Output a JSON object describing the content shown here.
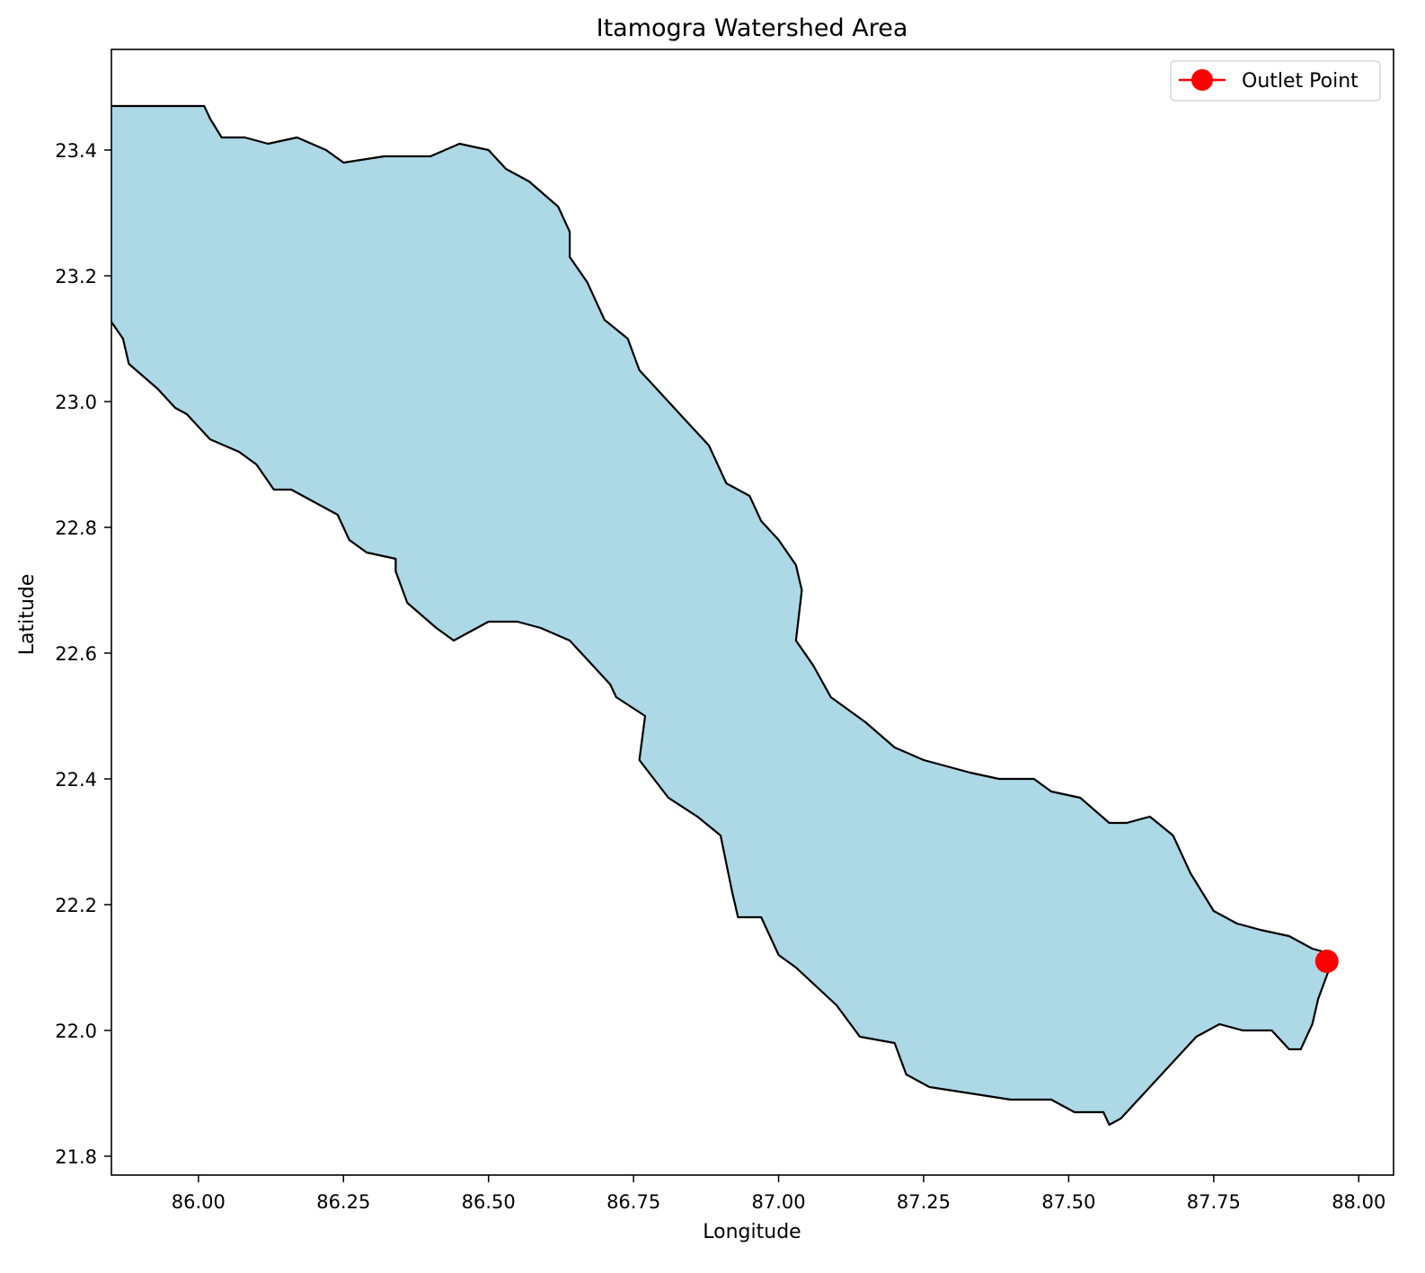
{
  "chart_data": {
    "type": "map",
    "title": "Itamogra Watershed Area",
    "xlabel": "Longitude",
    "ylabel": "Latitude",
    "xlim": [
      85.85,
      88.06
    ],
    "ylim": [
      21.77,
      23.56
    ],
    "xticks": [
      86.0,
      86.25,
      86.5,
      86.75,
      87.0,
      87.25,
      87.5,
      87.75,
      88.0
    ],
    "xtick_labels": [
      "86.00",
      "86.25",
      "86.50",
      "86.75",
      "87.00",
      "87.25",
      "87.50",
      "87.75",
      "88.00"
    ],
    "yticks": [
      21.8,
      22.0,
      22.2,
      22.4,
      22.6,
      22.8,
      23.0,
      23.2,
      23.4
    ],
    "ytick_labels": [
      "21.8",
      "22.0",
      "22.2",
      "22.4",
      "22.6",
      "22.8",
      "23.0",
      "23.2",
      "23.4"
    ],
    "grid": false,
    "legend": {
      "position": "top-right",
      "entries": [
        "Outlet Point"
      ]
    },
    "colors": {
      "watershed_fill": "#add8e6",
      "watershed_edge": "#000000",
      "outlet": "#ff0000"
    },
    "watershed_boundary": [
      [
        85.95,
        23.47
      ],
      [
        86.01,
        23.47
      ],
      [
        86.02,
        23.45
      ],
      [
        86.04,
        23.42
      ],
      [
        86.08,
        23.42
      ],
      [
        86.12,
        23.41
      ],
      [
        86.17,
        23.42
      ],
      [
        86.22,
        23.4
      ],
      [
        86.25,
        23.38
      ],
      [
        86.32,
        23.39
      ],
      [
        86.4,
        23.39
      ],
      [
        86.45,
        23.41
      ],
      [
        86.5,
        23.4
      ],
      [
        86.53,
        23.37
      ],
      [
        86.57,
        23.35
      ],
      [
        86.62,
        23.31
      ],
      [
        86.64,
        23.27
      ],
      [
        86.64,
        23.23
      ],
      [
        86.67,
        23.19
      ],
      [
        86.7,
        23.13
      ],
      [
        86.74,
        23.1
      ],
      [
        86.76,
        23.05
      ],
      [
        86.79,
        23.02
      ],
      [
        86.84,
        22.97
      ],
      [
        86.88,
        22.93
      ],
      [
        86.91,
        22.87
      ],
      [
        86.95,
        22.85
      ],
      [
        86.97,
        22.81
      ],
      [
        87.0,
        22.78
      ],
      [
        87.03,
        22.74
      ],
      [
        87.04,
        22.7
      ],
      [
        87.03,
        22.62
      ],
      [
        87.06,
        22.58
      ],
      [
        87.09,
        22.53
      ],
      [
        87.15,
        22.49
      ],
      [
        87.2,
        22.45
      ],
      [
        87.25,
        22.43
      ],
      [
        87.33,
        22.41
      ],
      [
        87.38,
        22.4
      ],
      [
        87.44,
        22.4
      ],
      [
        87.47,
        22.38
      ],
      [
        87.52,
        22.37
      ],
      [
        87.57,
        22.33
      ],
      [
        87.6,
        22.33
      ],
      [
        87.64,
        22.34
      ],
      [
        87.68,
        22.31
      ],
      [
        87.71,
        22.25
      ],
      [
        87.75,
        22.19
      ],
      [
        87.79,
        22.17
      ],
      [
        87.83,
        22.16
      ],
      [
        87.88,
        22.15
      ],
      [
        87.92,
        22.13
      ],
      [
        87.96,
        22.12
      ],
      [
        87.95,
        22.1
      ],
      [
        87.93,
        22.05
      ],
      [
        87.92,
        22.01
      ],
      [
        87.9,
        21.97
      ],
      [
        87.88,
        21.97
      ],
      [
        87.85,
        22.0
      ],
      [
        87.8,
        22.0
      ],
      [
        87.76,
        22.01
      ],
      [
        87.72,
        21.99
      ],
      [
        87.68,
        21.95
      ],
      [
        87.64,
        21.91
      ],
      [
        87.61,
        21.88
      ],
      [
        87.59,
        21.86
      ],
      [
        87.57,
        21.85
      ],
      [
        87.56,
        21.87
      ],
      [
        87.51,
        21.87
      ],
      [
        87.47,
        21.89
      ],
      [
        87.4,
        21.89
      ],
      [
        87.33,
        21.9
      ],
      [
        87.26,
        21.91
      ],
      [
        87.22,
        21.93
      ],
      [
        87.2,
        21.98
      ],
      [
        87.14,
        21.99
      ],
      [
        87.1,
        22.04
      ],
      [
        87.03,
        22.1
      ],
      [
        87.0,
        22.12
      ],
      [
        86.97,
        22.18
      ],
      [
        86.93,
        22.18
      ],
      [
        86.92,
        22.22
      ],
      [
        86.9,
        22.31
      ],
      [
        86.86,
        22.34
      ],
      [
        86.81,
        22.37
      ],
      [
        86.76,
        22.43
      ],
      [
        86.77,
        22.5
      ],
      [
        86.72,
        22.53
      ],
      [
        86.71,
        22.55
      ],
      [
        86.67,
        22.59
      ],
      [
        86.64,
        22.62
      ],
      [
        86.59,
        22.64
      ],
      [
        86.55,
        22.65
      ],
      [
        86.5,
        22.65
      ],
      [
        86.46,
        22.63
      ],
      [
        86.44,
        22.62
      ],
      [
        86.41,
        22.64
      ],
      [
        86.36,
        22.68
      ],
      [
        86.34,
        22.73
      ],
      [
        86.34,
        22.75
      ],
      [
        86.29,
        22.76
      ],
      [
        86.26,
        22.78
      ],
      [
        86.24,
        22.82
      ],
      [
        86.2,
        22.84
      ],
      [
        86.16,
        22.86
      ],
      [
        86.13,
        22.86
      ],
      [
        86.1,
        22.9
      ],
      [
        86.07,
        22.92
      ],
      [
        86.02,
        22.94
      ],
      [
        85.98,
        22.98
      ],
      [
        85.96,
        22.99
      ],
      [
        85.93,
        23.02
      ],
      [
        85.88,
        23.06
      ],
      [
        85.87,
        23.1
      ],
      [
        85.84,
        23.14
      ],
      [
        85.83,
        23.17
      ],
      [
        85.82,
        23.2
      ],
      [
        85.8,
        23.22
      ],
      [
        85.79,
        23.26
      ],
      [
        85.76,
        23.28
      ],
      [
        85.72,
        23.31
      ],
      [
        85.69,
        23.33
      ],
      [
        85.69,
        23.36
      ],
      [
        85.7,
        23.38
      ],
      [
        85.69,
        23.4
      ],
      [
        85.68,
        23.42
      ],
      [
        85.64,
        23.44
      ],
      [
        85.6,
        23.46
      ],
      [
        85.56,
        23.47
      ],
      [
        85.95,
        23.47
      ]
    ],
    "outlet_point": {
      "label": "Outlet Point",
      "lon": 87.945,
      "lat": 22.11
    }
  }
}
